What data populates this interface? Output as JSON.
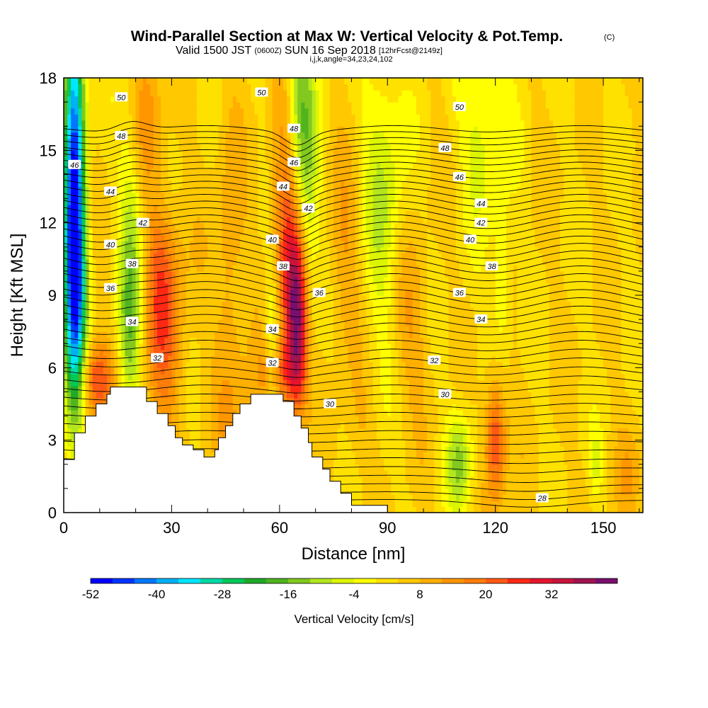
{
  "title": {
    "main": "Wind-Parallel Section at Max W: Vertical Velocity & Pot.Temp.",
    "main_suffix": "(C)",
    "valid_prefix": "Valid 1500 JST",
    "valid_utc": "(0600Z)",
    "valid_date": "SUN 16 Sep 2018",
    "forecast": "[12hrFcst@2149z]",
    "indices": "i,j,k,angle=34,23,24,102"
  },
  "colors": {
    "background": "#ffffff",
    "terrain": "#ffffff",
    "contour_line": "#000000"
  },
  "chart_data": {
    "type": "heatmap",
    "xlabel": "Distance [nm]",
    "ylabel": "Height [Kft MSL]",
    "xlim": [
      0,
      161
    ],
    "ylim": [
      0,
      18
    ],
    "xticks": [
      0,
      30,
      60,
      90,
      120,
      150
    ],
    "yticks": [
      0,
      3,
      6,
      9,
      12,
      15,
      18
    ],
    "field": "Vertical Velocity",
    "colorbar": {
      "title": "Vertical Velocity [cm/s]",
      "min": -52,
      "max": 40,
      "step": 4,
      "tick_labels": [
        -52,
        -40,
        -28,
        -16,
        -4,
        8,
        20,
        32
      ],
      "colors": [
        "#0000ff",
        "#0033ff",
        "#0077ff",
        "#00b0f5",
        "#00e6ff",
        "#00d9a6",
        "#00c85a",
        "#1eaa28",
        "#50b41e",
        "#82c81e",
        "#b4e61e",
        "#dcf500",
        "#ffff00",
        "#ffe100",
        "#ffc800",
        "#ffaf00",
        "#ff9600",
        "#ff7d0a",
        "#ff5a14",
        "#ff2814",
        "#e6142d",
        "#c8143c",
        "#a01450",
        "#780f6e"
      ]
    },
    "wind_cores": [
      {
        "x": 3,
        "y": 14.0,
        "sx": 2.0,
        "sy": 6.5,
        "w": -48
      },
      {
        "x": 3,
        "y": 9.0,
        "sx": 2.5,
        "sy": 3.0,
        "w": -24
      },
      {
        "x": 19,
        "y": 11.5,
        "sx": 2.5,
        "sy": 5.5,
        "w": -14
      },
      {
        "x": 18,
        "y": 7.5,
        "sx": 2.0,
        "sy": 2.0,
        "w": -10
      },
      {
        "x": 9,
        "y": 5.5,
        "sx": 3.0,
        "sy": 1.2,
        "w": 22
      },
      {
        "x": 22,
        "y": 16.5,
        "sx": 3.5,
        "sy": 2.5,
        "w": 12
      },
      {
        "x": 28,
        "y": 7.5,
        "sx": 4.0,
        "sy": 3.0,
        "w": 16
      },
      {
        "x": 27,
        "y": 10.5,
        "sx": 3.0,
        "sy": 2.0,
        "w": 8
      },
      {
        "x": 58,
        "y": 7.0,
        "sx": 1.5,
        "sy": 2.5,
        "w": -14
      },
      {
        "x": 65,
        "y": 16.5,
        "sx": 3.0,
        "sy": 3.5,
        "w": -24
      },
      {
        "x": 67,
        "y": 12.0,
        "sx": 2.5,
        "sy": 3.5,
        "w": -12
      },
      {
        "x": 63,
        "y": 14.0,
        "sx": 3.0,
        "sy": 4.0,
        "w": 14
      },
      {
        "x": 65,
        "y": 8.0,
        "sx": 2.0,
        "sy": 2.6,
        "w": 34
      },
      {
        "x": 62,
        "y": 11.0,
        "sx": 3.0,
        "sy": 4.0,
        "w": 14
      },
      {
        "x": 60,
        "y": 5.8,
        "sx": 4.0,
        "sy": 1.0,
        "w": 14
      },
      {
        "x": 46,
        "y": 9.5,
        "sx": 3.0,
        "sy": 5.0,
        "w": 8
      },
      {
        "x": 50,
        "y": 3.5,
        "sx": 4.0,
        "sy": 1.5,
        "w": 6
      },
      {
        "x": 89,
        "y": 13.0,
        "sx": 4.0,
        "sy": 4.5,
        "w": -12
      },
      {
        "x": 96,
        "y": 8.0,
        "sx": 4.0,
        "sy": 2.5,
        "w": 8
      },
      {
        "x": 78,
        "y": 10.5,
        "sx": 3.0,
        "sy": 3.0,
        "w": 8
      },
      {
        "x": 117,
        "y": 16.0,
        "sx": 5.0,
        "sy": 3.0,
        "w": -10
      },
      {
        "x": 122,
        "y": 9.5,
        "sx": 1.8,
        "sy": 2.0,
        "w": -10
      },
      {
        "x": 110,
        "y": 2.2,
        "sx": 2.5,
        "sy": 1.5,
        "w": -16
      },
      {
        "x": 120,
        "y": 3.0,
        "sx": 2.0,
        "sy": 1.8,
        "w": 22
      },
      {
        "x": 148,
        "y": 2.0,
        "sx": 1.2,
        "sy": 1.0,
        "w": -8
      },
      {
        "x": 157,
        "y": 1.5,
        "sx": 3.0,
        "sy": 1.2,
        "w": 6
      },
      {
        "x": 82,
        "y": 3.5,
        "sx": 3.0,
        "sy": 1.5,
        "w": 4
      }
    ],
    "terrain": [
      [
        0,
        2.2
      ],
      [
        3,
        2.2
      ],
      [
        3,
        3.3
      ],
      [
        6,
        3.3
      ],
      [
        6,
        4.0
      ],
      [
        9,
        4.0
      ],
      [
        9,
        4.5
      ],
      [
        12,
        4.5
      ],
      [
        12,
        4.9
      ],
      [
        13,
        4.9
      ],
      [
        13,
        5.2
      ],
      [
        23,
        5.2
      ],
      [
        23,
        4.6
      ],
      [
        26,
        4.6
      ],
      [
        26,
        4.1
      ],
      [
        29,
        4.1
      ],
      [
        29,
        3.6
      ],
      [
        31,
        3.6
      ],
      [
        31,
        3.1
      ],
      [
        33,
        3.1
      ],
      [
        33,
        2.8
      ],
      [
        36,
        2.8
      ],
      [
        36,
        2.6
      ],
      [
        39,
        2.6
      ],
      [
        39,
        2.3
      ],
      [
        42,
        2.3
      ],
      [
        42,
        2.6
      ],
      [
        43,
        2.6
      ],
      [
        43,
        3.1
      ],
      [
        45,
        3.1
      ],
      [
        45,
        3.6
      ],
      [
        47,
        3.6
      ],
      [
        47,
        4.1
      ],
      [
        49,
        4.1
      ],
      [
        49,
        4.5
      ],
      [
        52,
        4.5
      ],
      [
        52,
        4.9
      ],
      [
        61,
        4.9
      ],
      [
        61,
        4.6
      ],
      [
        64,
        4.6
      ],
      [
        64,
        4.0
      ],
      [
        66,
        4.0
      ],
      [
        66,
        3.5
      ],
      [
        68,
        3.5
      ],
      [
        68,
        2.9
      ],
      [
        69,
        2.9
      ],
      [
        69,
        2.3
      ],
      [
        72,
        2.3
      ],
      [
        72,
        1.8
      ],
      [
        74,
        1.8
      ],
      [
        74,
        1.3
      ],
      [
        77,
        1.3
      ],
      [
        77,
        0.8
      ],
      [
        80,
        0.8
      ],
      [
        80,
        0.3
      ],
      [
        90,
        0.3
      ],
      [
        90,
        0
      ],
      [
        0,
        0
      ]
    ],
    "contour_levels": [
      30,
      32,
      34,
      36,
      38,
      40,
      42,
      44,
      46,
      48,
      50
    ],
    "contour_labels": [
      {
        "text": "50",
        "x": 16,
        "y": 17.2
      },
      {
        "text": "50",
        "x": 55,
        "y": 17.4
      },
      {
        "text": "50",
        "x": 110,
        "y": 16.8
      },
      {
        "text": "48",
        "x": 16,
        "y": 15.6
      },
      {
        "text": "48",
        "x": 64,
        "y": 15.9
      },
      {
        "text": "48",
        "x": 106,
        "y": 15.1
      },
      {
        "text": "46",
        "x": 3,
        "y": 14.4
      },
      {
        "text": "46",
        "x": 64,
        "y": 14.5
      },
      {
        "text": "46",
        "x": 110,
        "y": 13.9
      },
      {
        "text": "44",
        "x": 13,
        "y": 13.3
      },
      {
        "text": "44",
        "x": 61,
        "y": 13.5
      },
      {
        "text": "44",
        "x": 116,
        "y": 12.8
      },
      {
        "text": "42",
        "x": 22,
        "y": 12.0
      },
      {
        "text": "42",
        "x": 68,
        "y": 12.6
      },
      {
        "text": "42",
        "x": 116,
        "y": 12.0
      },
      {
        "text": "40",
        "x": 13,
        "y": 11.1
      },
      {
        "text": "40",
        "x": 58,
        "y": 11.3
      },
      {
        "text": "40",
        "x": 113,
        "y": 11.3
      },
      {
        "text": "38",
        "x": 19,
        "y": 10.3
      },
      {
        "text": "38",
        "x": 61,
        "y": 10.2
      },
      {
        "text": "38",
        "x": 119,
        "y": 10.2
      },
      {
        "text": "36",
        "x": 13,
        "y": 9.3
      },
      {
        "text": "36",
        "x": 71,
        "y": 9.1
      },
      {
        "text": "36",
        "x": 110,
        "y": 9.1
      },
      {
        "text": "34",
        "x": 19,
        "y": 7.9
      },
      {
        "text": "34",
        "x": 58,
        "y": 7.6
      },
      {
        "text": "34",
        "x": 116,
        "y": 8.0
      },
      {
        "text": "32",
        "x": 26,
        "y": 6.4
      },
      {
        "text": "32",
        "x": 58,
        "y": 6.2
      },
      {
        "text": "32",
        "x": 103,
        "y": 6.3
      },
      {
        "text": "30",
        "x": 74,
        "y": 4.5
      },
      {
        "text": "30",
        "x": 106,
        "y": 4.9
      },
      {
        "text": "28",
        "x": 133,
        "y": 0.6
      }
    ]
  }
}
